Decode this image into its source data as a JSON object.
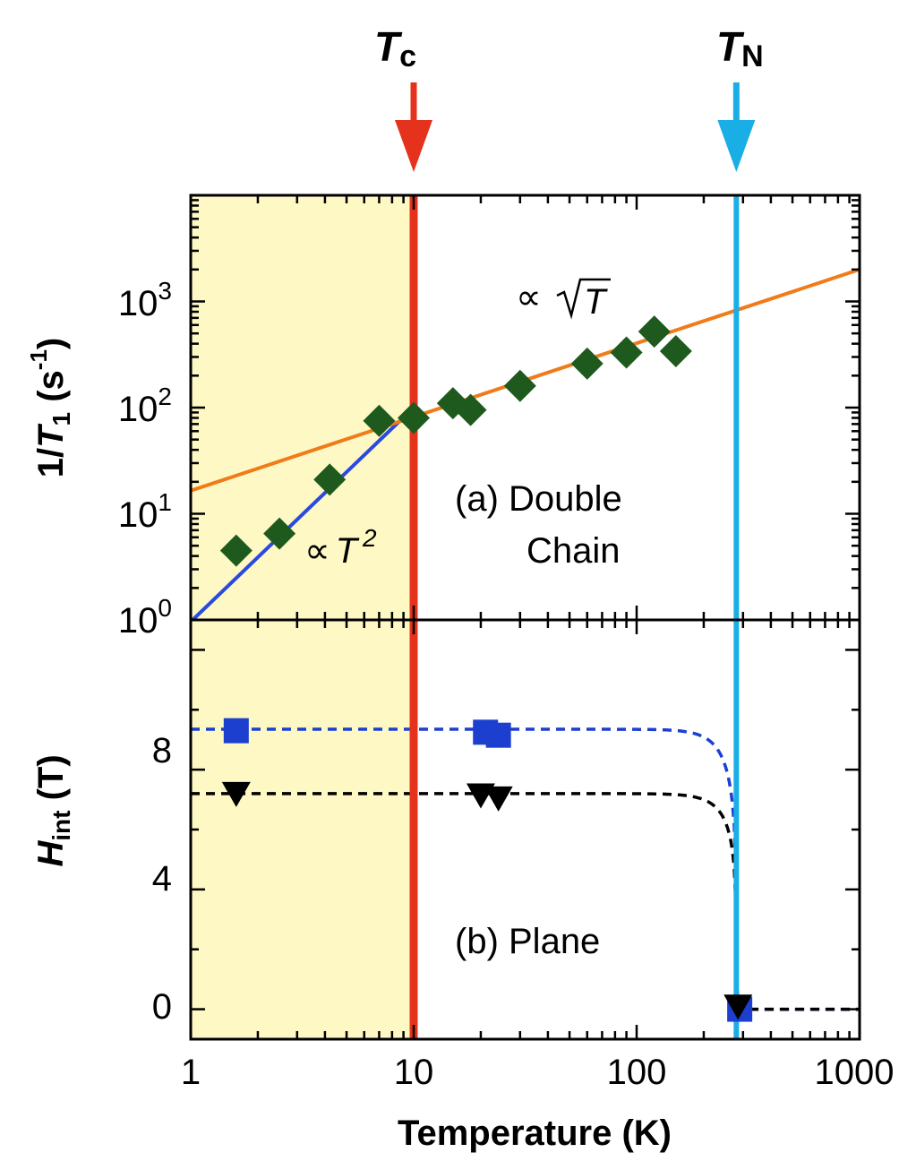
{
  "chart_data": [
    {
      "panel": "(a) Double Chain",
      "type": "scatter",
      "xscale": "log",
      "yscale": "log",
      "xlim": [
        1,
        1000
      ],
      "ylim": [
        1,
        10000
      ],
      "x_ticks": [
        "1",
        "10",
        "100",
        "1000"
      ],
      "y_ticks": [
        {
          "base": "10",
          "exp": "0"
        },
        {
          "base": "10",
          "exp": "1"
        },
        {
          "base": "10",
          "exp": "2"
        },
        {
          "base": "10",
          "exp": "3"
        }
      ],
      "ylabel": {
        "pre": "1/",
        "sym": "T",
        "sub": "1",
        "post": " (s",
        "sup": "-1",
        "close": ")"
      },
      "annotations": {
        "panel_line1": "(a) Double",
        "panel_line2": "Chain",
        "fit_t2": {
          "prop": "∝",
          "sym": "T",
          "sup": "2"
        },
        "fit_sqrt": {
          "prop": "∝",
          "sym": "T"
        }
      },
      "series": [
        {
          "marker": "diamond",
          "color": "#1e5a1e",
          "x": [
            1.6,
            2.5,
            4.2,
            7.0,
            10.0,
            15.0,
            18.0,
            30.0,
            60.0,
            90.0,
            120.0,
            150.0
          ],
          "y": [
            4.5,
            6.5,
            21,
            75,
            80,
            110,
            95,
            160,
            260,
            330,
            520,
            340
          ]
        }
      ],
      "fits": [
        {
          "label": "T^2",
          "color": "#2a49e0",
          "x": [
            1.02,
            10
          ],
          "y": [
            1.0,
            100
          ]
        },
        {
          "label": "sqrt(T)",
          "color": "#f07b1a",
          "x": [
            1,
            1000
          ],
          "y": [
            16.5,
            2000
          ]
        }
      ]
    },
    {
      "panel": "(b) Plane",
      "type": "scatter",
      "xscale": "log",
      "xlim": [
        1,
        1000
      ],
      "ylim": [
        -1,
        13
      ],
      "x_ticks": [
        "1",
        "10",
        "100",
        "1000"
      ],
      "y_ticks": [
        "0",
        "4",
        "8"
      ],
      "xlabel": "Temperature (K)",
      "ylabel": {
        "sym": "H",
        "sub": "int",
        "post": " (T)"
      },
      "annotations": {
        "panel_text": "(b) Plane"
      },
      "series": [
        {
          "marker": "square",
          "color": "#1c3fd0",
          "x": [
            1.6,
            21,
            24,
            290
          ],
          "y": [
            9.3,
            9.25,
            9.15,
            0
          ]
        },
        {
          "marker": "triangle-down",
          "color": "#000000",
          "x": [
            1.6,
            20,
            24,
            285
          ],
          "y": [
            7.2,
            7.15,
            7.05,
            0.1
          ]
        }
      ],
      "fit_curves": [
        {
          "color": "#1c3fd0",
          "style": "dashed",
          "Tn": 280,
          "amplitude": 9.35,
          "exponent": 0.2
        },
        {
          "color": "#000000",
          "style": "dashed",
          "Tn": 280,
          "amplitude": 7.2,
          "exponent": 0.2
        }
      ]
    }
  ],
  "transitions": [
    {
      "sym": "T",
      "sub": "c",
      "x": 10,
      "color": "#e5321c"
    },
    {
      "sym": "T",
      "sub": "N",
      "x": 280,
      "color": "#1aaee6"
    }
  ],
  "shading": {
    "from_x": 1,
    "to_x": 10,
    "color": "#fdf8c4"
  }
}
